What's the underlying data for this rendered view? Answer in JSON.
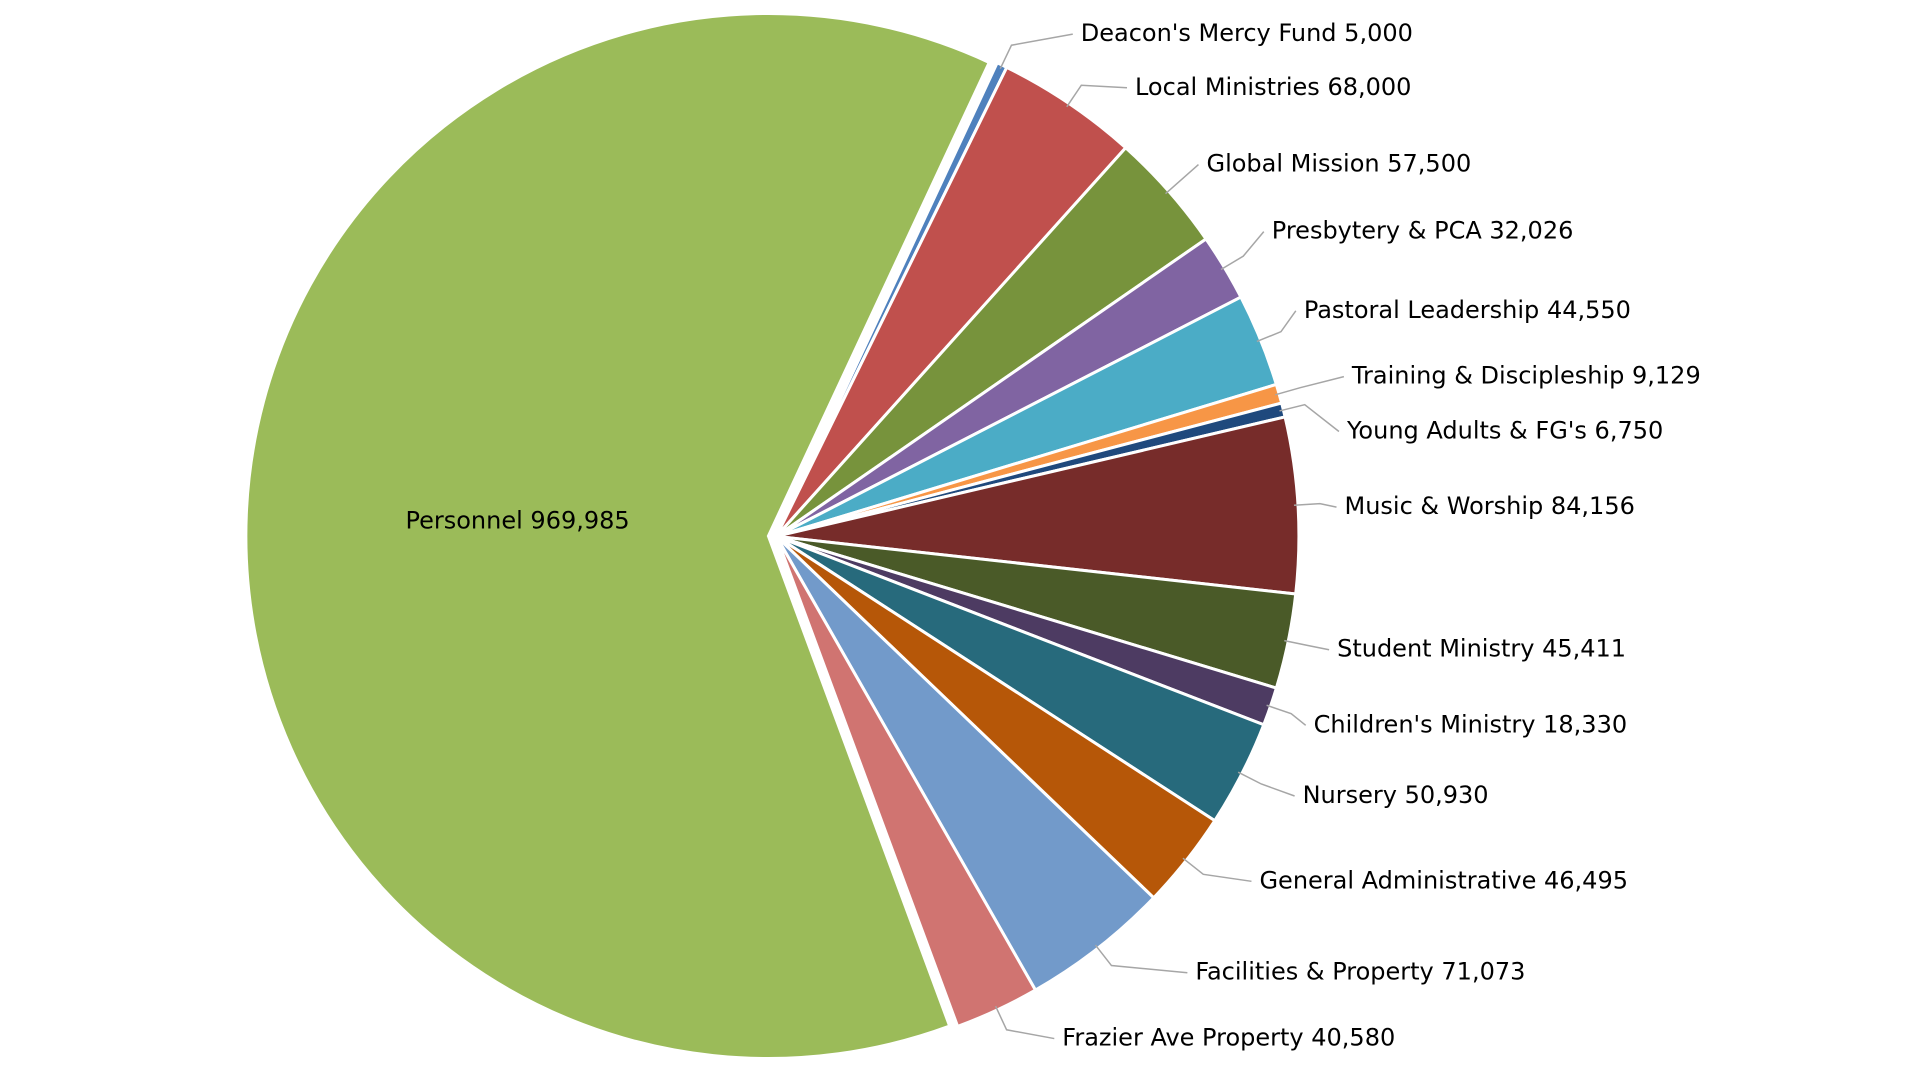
{
  "chart_data": {
    "type": "pie",
    "categories": [
      "Deacon's Mercy Fund",
      "Local Ministries",
      "Global Mission",
      "Presbytery & PCA",
      "Pastoral Leadership",
      "Training & Discipleship",
      "Young Adults & FG's",
      "Music & Worship",
      "Student Ministry",
      "Children's Ministry",
      "Nursery",
      "General Administrative",
      "Facilities & Property",
      "Frazier Ave Property",
      "Personnel"
    ],
    "values": [
      5000,
      68000,
      57500,
      32026,
      44550,
      9129,
      6750,
      84156,
      45411,
      18330,
      50930,
      46495,
      71073,
      40580,
      969985
    ],
    "value_labels": [
      "5,000",
      "68,000",
      "57,500",
      "32,026",
      "44,550",
      "9,129",
      "6,750",
      "84,156",
      "45,411",
      "18,330",
      "50,930",
      "46,495",
      "71,073",
      "40,580",
      "969,985"
    ],
    "colors": [
      "#4f81bd",
      "#c0504d",
      "#77933c",
      "#8064a2",
      "#4bacc6",
      "#f79646",
      "#1f497d",
      "#772c2a",
      "#4a5a28",
      "#4d3b62",
      "#276a7c",
      "#b65708",
      "#729aca",
      "#d07471",
      "#9bbb59"
    ]
  }
}
